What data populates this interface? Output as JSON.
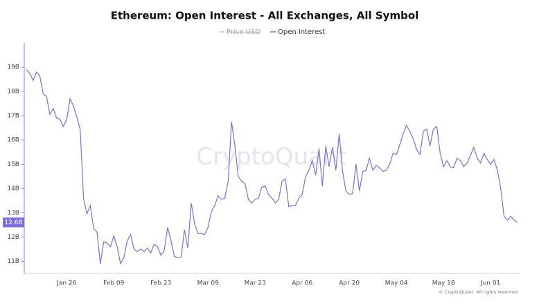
{
  "chart_data": {
    "type": "line",
    "title": "Ethereum: Open Interest - All Exchanges, All Symbol",
    "watermark": "CryptoQuant",
    "footer": "© CryptoQuant. All rights reserved",
    "hidden_series": [
      {
        "name": "Price USD",
        "color": "#c8c8c8"
      }
    ],
    "last_value_label": "12.6B",
    "categories": [
      null,
      null,
      null,
      null,
      null,
      null,
      null,
      null,
      null,
      null,
      null,
      null,
      "Jan 26",
      null,
      null,
      null,
      null,
      null,
      null,
      null,
      null,
      null,
      null,
      null,
      null,
      null,
      "Feb 09",
      null,
      null,
      null,
      null,
      null,
      null,
      null,
      null,
      null,
      null,
      null,
      null,
      null,
      "Feb 23",
      null,
      null,
      null,
      null,
      null,
      null,
      null,
      null,
      null,
      null,
      null,
      null,
      null,
      "Mar 09",
      null,
      null,
      null,
      null,
      null,
      null,
      null,
      null,
      null,
      null,
      null,
      null,
      null,
      "Mar 23",
      null,
      null,
      null,
      null,
      null,
      null,
      null,
      null,
      null,
      null,
      null,
      null,
      null,
      "Apr 06",
      null,
      null,
      null,
      null,
      null,
      null,
      null,
      null,
      null,
      null,
      null,
      null,
      null,
      "Apr 20",
      null,
      null,
      null,
      null,
      null,
      null,
      null,
      null,
      null,
      null,
      null,
      null,
      null,
      "May 04",
      null,
      null,
      null,
      null,
      null,
      null,
      null,
      null,
      null,
      null,
      null,
      null,
      null,
      "May 18",
      null,
      null,
      null,
      null,
      null,
      null,
      null,
      null,
      null,
      null,
      null,
      null,
      null,
      "Jun 01",
      null,
      null,
      null,
      null,
      null,
      null,
      null,
      null
    ],
    "series": [
      {
        "name": "Open Interest",
        "color": "#7b6fe0",
        "values": [
          18.9,
          18.75,
          18.45,
          18.8,
          18.65,
          17.9,
          17.8,
          17.05,
          17.3,
          16.9,
          16.85,
          16.55,
          16.85,
          17.7,
          17.4,
          16.95,
          16.45,
          13.6,
          12.95,
          13.3,
          12.35,
          12.2,
          10.9,
          11.8,
          11.75,
          11.6,
          12.05,
          11.6,
          10.9,
          11.15,
          11.85,
          12.1,
          11.5,
          11.4,
          11.5,
          11.4,
          11.55,
          11.35,
          11.7,
          11.6,
          11.25,
          11.45,
          12.4,
          11.85,
          11.2,
          11.15,
          11.15,
          12.3,
          11.55,
          13.4,
          12.55,
          12.15,
          12.15,
          12.1,
          12.4,
          13.05,
          13.3,
          13.7,
          13.55,
          13.6,
          14.3,
          16.75,
          15.75,
          14.5,
          14.3,
          14.2,
          13.55,
          13.4,
          13.55,
          13.6,
          14.05,
          14.1,
          13.75,
          13.6,
          13.4,
          13.55,
          14.3,
          14.4,
          13.25,
          13.3,
          13.3,
          13.6,
          13.75,
          14.5,
          14.75,
          15.15,
          14.55,
          15.65,
          14.1,
          15.75,
          14.9,
          15.7,
          14.75,
          16.25,
          14.7,
          13.9,
          13.75,
          13.8,
          15.0,
          13.9,
          14.7,
          14.75,
          15.25,
          14.75,
          14.95,
          14.85,
          14.7,
          14.75,
          15.0,
          15.45,
          15.4,
          15.8,
          16.25,
          16.6,
          16.35,
          16.05,
          15.6,
          15.4,
          16.35,
          16.45,
          15.75,
          16.45,
          16.55,
          15.45,
          14.9,
          15.15,
          14.9,
          14.85,
          15.25,
          15.15,
          14.9,
          15.05,
          15.35,
          15.7,
          15.25,
          15.05,
          15.45,
          15.2,
          15.0,
          15.2,
          14.75,
          14.0,
          12.85,
          12.7,
          12.85,
          12.7,
          12.6
        ]
      }
    ],
    "ylim": [
      10.5,
      20
    ],
    "yticks": [
      {
        "value": 11,
        "label": "11B"
      },
      {
        "value": 12,
        "label": "12B"
      },
      {
        "value": 13,
        "label": "13B"
      },
      {
        "value": 14,
        "label": "14B"
      },
      {
        "value": 15,
        "label": "15B"
      },
      {
        "value": 16,
        "label": "16B"
      },
      {
        "value": 17,
        "label": "17B"
      },
      {
        "value": 18,
        "label": "18B"
      },
      {
        "value": 19,
        "label": "19B"
      }
    ],
    "grid": false
  }
}
